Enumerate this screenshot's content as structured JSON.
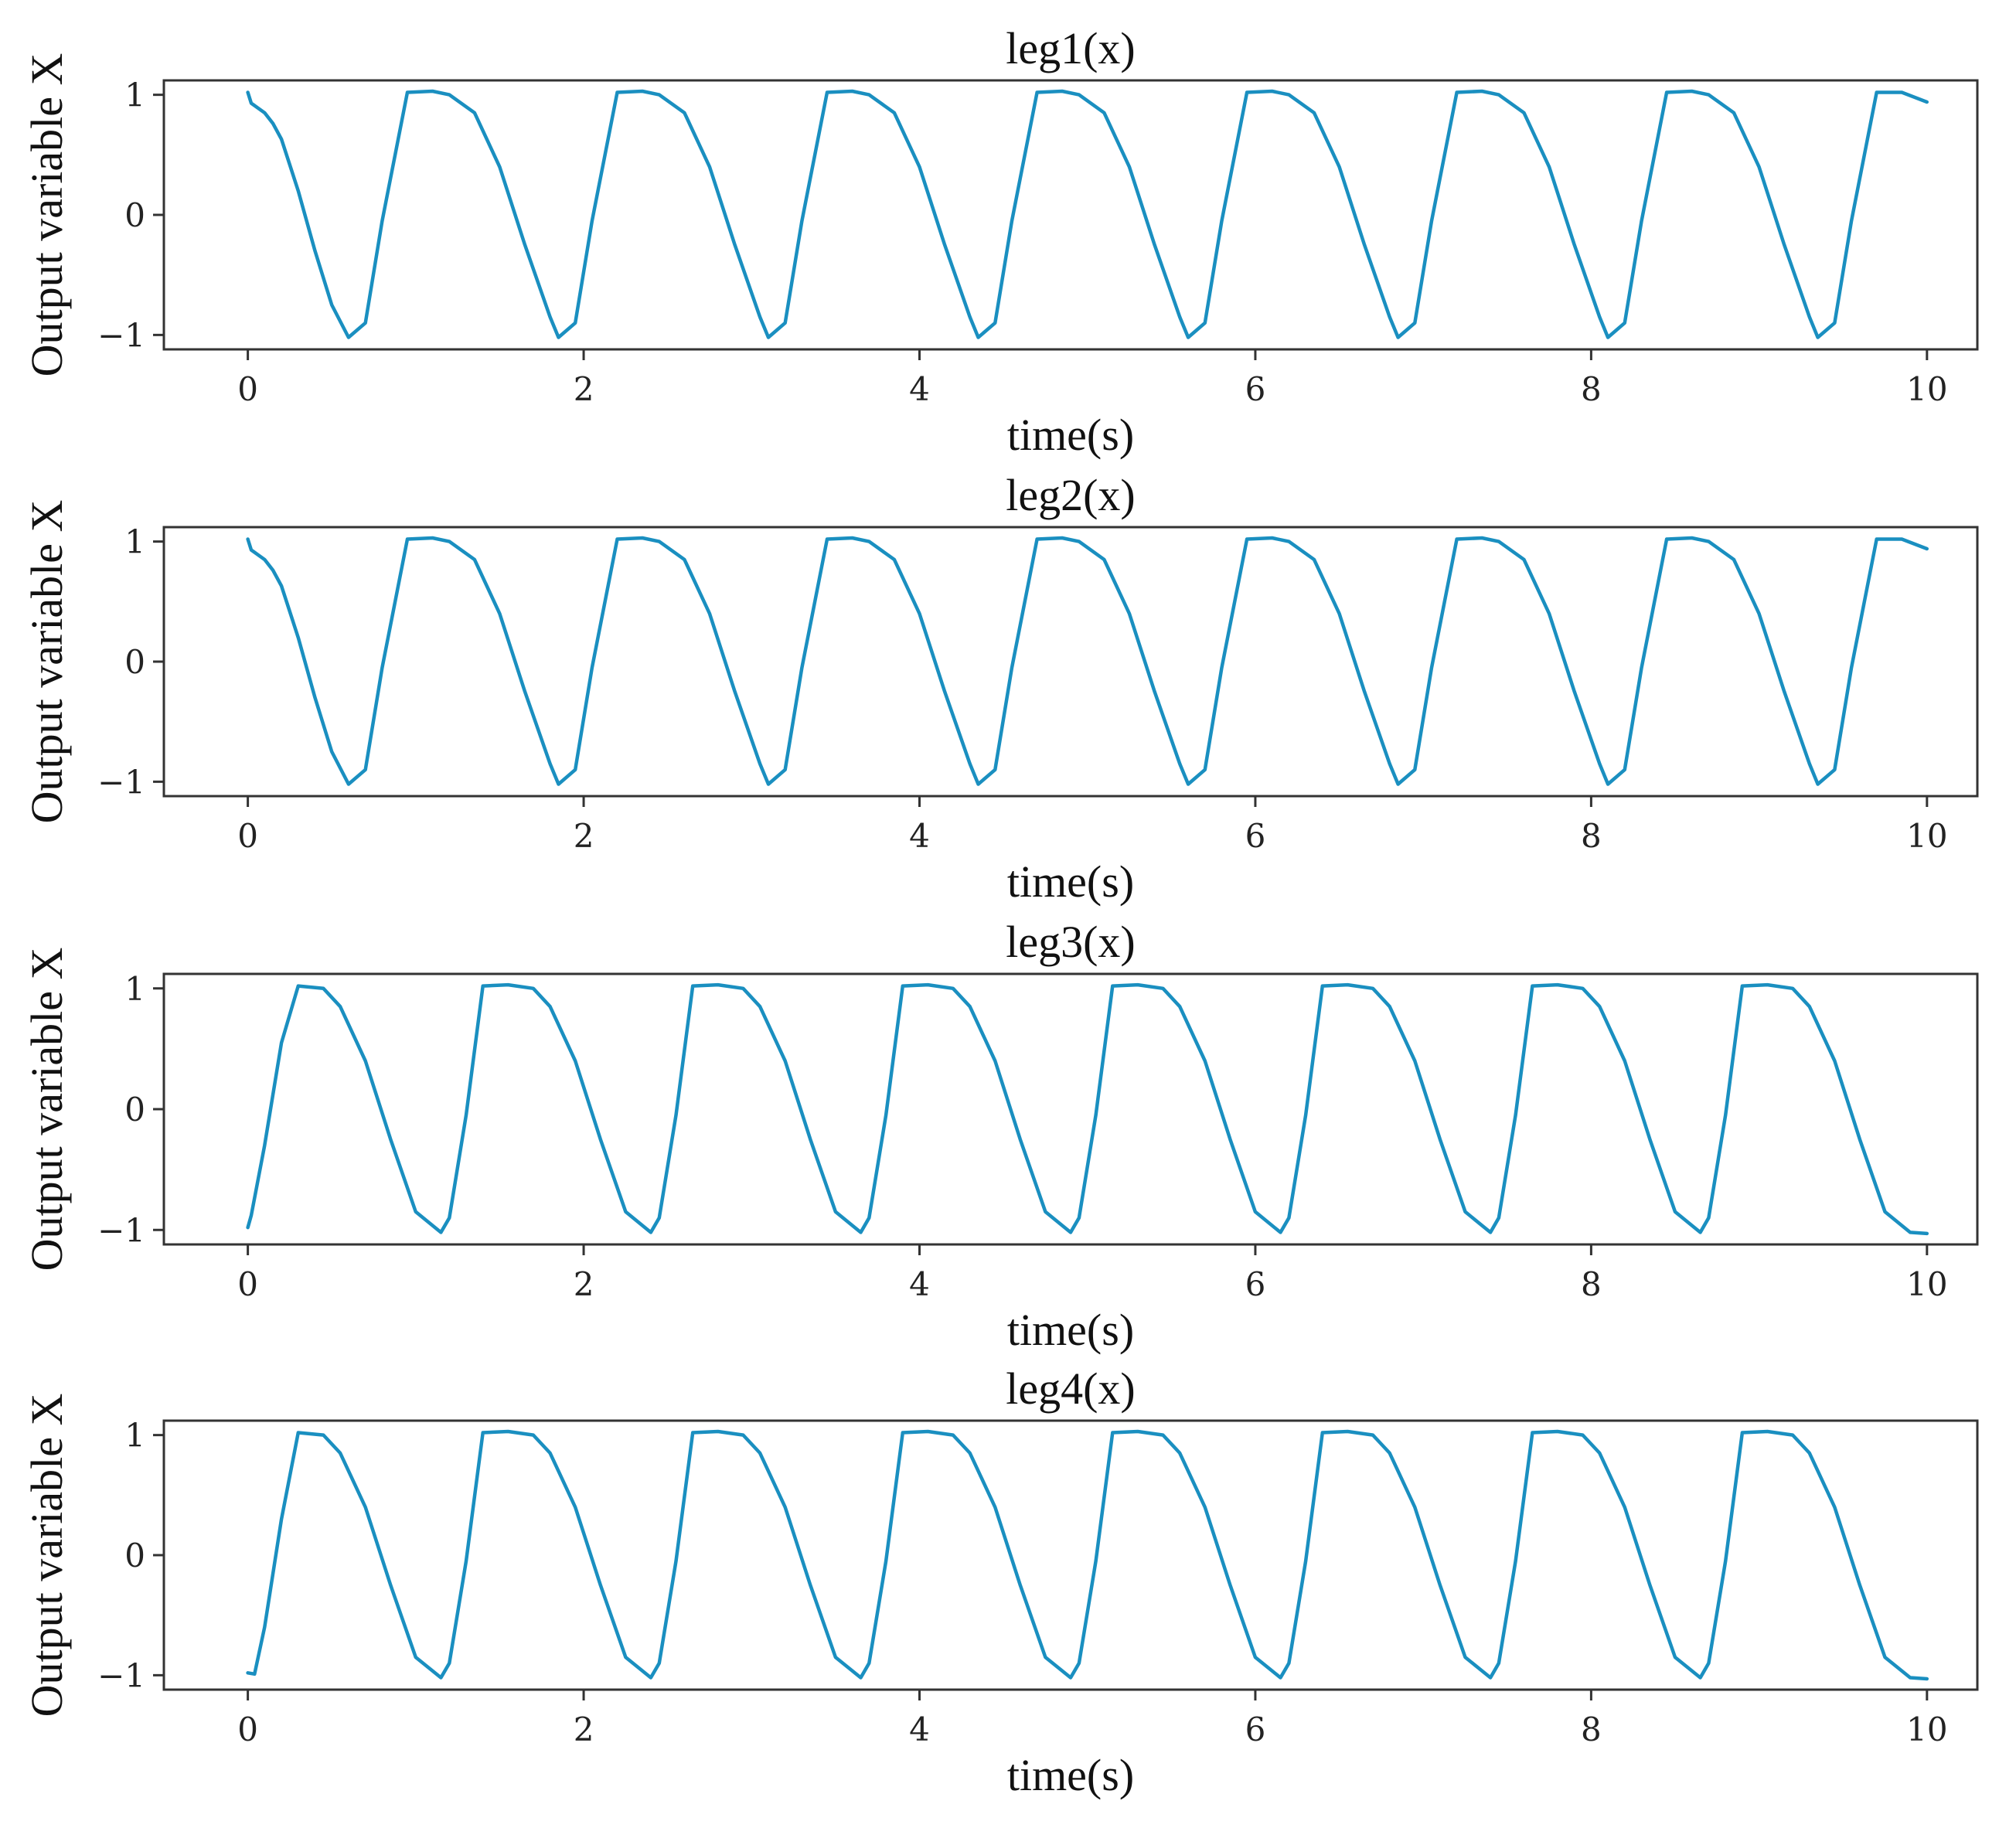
{
  "style": {
    "line_color": "#1a8fc0",
    "axes_color": "#333333",
    "background": "#ffffff"
  },
  "chart_data": [
    {
      "type": "line",
      "title": "leg1(x)",
      "xlabel": "time(s)",
      "ylabel": "Output variable X",
      "xlim": [
        -0.5,
        10.3
      ],
      "ylim": [
        -1.12,
        1.12
      ],
      "xticks": [
        0,
        2,
        4,
        6,
        8,
        10
      ],
      "xtick_labels": [
        "0",
        "2",
        "4",
        "6",
        "8",
        "10"
      ],
      "yticks": [
        1,
        0,
        -1
      ],
      "ytick_labels": [
        "1",
        "0",
        "−1"
      ],
      "grid": false,
      "series": [
        {
          "color": "#1a8fc0",
          "x": [
            0,
            0.02,
            0.05,
            0.1,
            0.15,
            0.2,
            0.3,
            0.4,
            0.5,
            0.6,
            0.7,
            0.8,
            0.95,
            1.1,
            1.2,
            1.35,
            1.5,
            1.65,
            1.8,
            1.85,
            1.95,
            2.05,
            2.2,
            2.35,
            2.45,
            2.6,
            2.75,
            2.9,
            3.05,
            3.1,
            3.2,
            3.3,
            3.45,
            3.6,
            3.7,
            3.85,
            4.0,
            4.15,
            4.3,
            4.35,
            4.45,
            4.55,
            4.7,
            4.85,
            4.95,
            5.1,
            5.25,
            5.4,
            5.55,
            5.6,
            5.7,
            5.8,
            5.95,
            6.1,
            6.2,
            6.35,
            6.5,
            6.65,
            6.8,
            6.85,
            6.95,
            7.05,
            7.2,
            7.35,
            7.45,
            7.6,
            7.75,
            7.9,
            8.05,
            8.1,
            8.2,
            8.3,
            8.45,
            8.6,
            8.7,
            8.85,
            9.0,
            9.15,
            9.3,
            9.35,
            9.45,
            9.55,
            9.7,
            9.85,
            10.0
          ],
          "y": [
            1.02,
            0.93,
            0.9,
            0.85,
            0.76,
            0.63,
            0.2,
            -0.3,
            -0.75,
            -1.02,
            -0.9,
            -0.05,
            1.02,
            1.03,
            1.0,
            0.85,
            0.4,
            -0.25,
            -0.85,
            -1.02,
            -0.9,
            -0.05,
            1.02,
            1.03,
            1.0,
            0.85,
            0.4,
            -0.25,
            -0.85,
            -1.02,
            -0.9,
            -0.05,
            1.02,
            1.03,
            1.0,
            0.85,
            0.4,
            -0.25,
            -0.85,
            -1.02,
            -0.9,
            -0.05,
            1.02,
            1.03,
            1.0,
            0.85,
            0.4,
            -0.25,
            -0.85,
            -1.02,
            -0.9,
            -0.05,
            1.02,
            1.03,
            1.0,
            0.85,
            0.4,
            -0.25,
            -0.85,
            -1.02,
            -0.9,
            -0.05,
            1.02,
            1.03,
            1.0,
            0.85,
            0.4,
            -0.25,
            -0.85,
            -1.02,
            -0.9,
            -0.05,
            1.02,
            1.03,
            1.0,
            0.85,
            0.4,
            -0.25,
            -0.85,
            -1.02,
            -0.9,
            -0.05,
            1.02,
            1.02,
            0.94
          ]
        }
      ]
    },
    {
      "type": "line",
      "title": "leg2(x)",
      "xlabel": "time(s)",
      "ylabel": "Output variable X",
      "xlim": [
        -0.5,
        10.3
      ],
      "ylim": [
        -1.12,
        1.12
      ],
      "xticks": [
        0,
        2,
        4,
        6,
        8,
        10
      ],
      "xtick_labels": [
        "0",
        "2",
        "4",
        "6",
        "8",
        "10"
      ],
      "yticks": [
        1,
        0,
        -1
      ],
      "ytick_labels": [
        "1",
        "0",
        "−1"
      ],
      "grid": false,
      "series": [
        {
          "color": "#1a8fc0",
          "x": [
            0,
            0.02,
            0.05,
            0.1,
            0.15,
            0.2,
            0.3,
            0.4,
            0.5,
            0.6,
            0.7,
            0.8,
            0.95,
            1.1,
            1.2,
            1.35,
            1.5,
            1.65,
            1.8,
            1.85,
            1.95,
            2.05,
            2.2,
            2.35,
            2.45,
            2.6,
            2.75,
            2.9,
            3.05,
            3.1,
            3.2,
            3.3,
            3.45,
            3.6,
            3.7,
            3.85,
            4.0,
            4.15,
            4.3,
            4.35,
            4.45,
            4.55,
            4.7,
            4.85,
            4.95,
            5.1,
            5.25,
            5.4,
            5.55,
            5.6,
            5.7,
            5.8,
            5.95,
            6.1,
            6.2,
            6.35,
            6.5,
            6.65,
            6.8,
            6.85,
            6.95,
            7.05,
            7.2,
            7.35,
            7.45,
            7.6,
            7.75,
            7.9,
            8.05,
            8.1,
            8.2,
            8.3,
            8.45,
            8.6,
            8.7,
            8.85,
            9.0,
            9.15,
            9.3,
            9.35,
            9.45,
            9.55,
            9.7,
            9.85,
            10.0
          ],
          "y": [
            1.02,
            0.93,
            0.9,
            0.85,
            0.76,
            0.63,
            0.2,
            -0.3,
            -0.75,
            -1.02,
            -0.9,
            -0.05,
            1.02,
            1.03,
            1.0,
            0.85,
            0.4,
            -0.25,
            -0.85,
            -1.02,
            -0.9,
            -0.05,
            1.02,
            1.03,
            1.0,
            0.85,
            0.4,
            -0.25,
            -0.85,
            -1.02,
            -0.9,
            -0.05,
            1.02,
            1.03,
            1.0,
            0.85,
            0.4,
            -0.25,
            -0.85,
            -1.02,
            -0.9,
            -0.05,
            1.02,
            1.03,
            1.0,
            0.85,
            0.4,
            -0.25,
            -0.85,
            -1.02,
            -0.9,
            -0.05,
            1.02,
            1.03,
            1.0,
            0.85,
            0.4,
            -0.25,
            -0.85,
            -1.02,
            -0.9,
            -0.05,
            1.02,
            1.03,
            1.0,
            0.85,
            0.4,
            -0.25,
            -0.85,
            -1.02,
            -0.9,
            -0.05,
            1.02,
            1.03,
            1.0,
            0.85,
            0.4,
            -0.25,
            -0.85,
            -1.02,
            -0.9,
            -0.05,
            1.02,
            1.02,
            0.94
          ]
        }
      ]
    },
    {
      "type": "line",
      "title": "leg3(x)",
      "xlabel": "time(s)",
      "ylabel": "Output variable X",
      "xlim": [
        -0.5,
        10.3
      ],
      "ylim": [
        -1.12,
        1.12
      ],
      "xticks": [
        0,
        2,
        4,
        6,
        8,
        10
      ],
      "xtick_labels": [
        "0",
        "2",
        "4",
        "6",
        "8",
        "10"
      ],
      "yticks": [
        1,
        0,
        -1
      ],
      "ytick_labels": [
        "1",
        "0",
        "−1"
      ],
      "grid": false,
      "series": [
        {
          "color": "#1a8fc0",
          "x": [
            0,
            0.02,
            0.1,
            0.2,
            0.3,
            0.45,
            0.55,
            0.7,
            0.85,
            1.0,
            1.15,
            1.2,
            1.3,
            1.4,
            1.55,
            1.7,
            1.8,
            1.95,
            2.1,
            2.25,
            2.4,
            2.45,
            2.55,
            2.65,
            2.8,
            2.95,
            3.05,
            3.2,
            3.35,
            3.5,
            3.65,
            3.7,
            3.8,
            3.9,
            4.05,
            4.2,
            4.3,
            4.45,
            4.6,
            4.75,
            4.9,
            4.95,
            5.05,
            5.15,
            5.3,
            5.45,
            5.55,
            5.7,
            5.85,
            6.0,
            6.15,
            6.2,
            6.3,
            6.4,
            6.55,
            6.7,
            6.8,
            6.95,
            7.1,
            7.25,
            7.4,
            7.45,
            7.55,
            7.65,
            7.8,
            7.95,
            8.05,
            8.2,
            8.35,
            8.5,
            8.65,
            8.7,
            8.8,
            8.9,
            9.05,
            9.2,
            9.3,
            9.45,
            9.6,
            9.75,
            9.9,
            10.0
          ],
          "y": [
            -0.98,
            -0.88,
            -0.3,
            0.55,
            1.02,
            1.0,
            0.85,
            0.4,
            -0.25,
            -0.85,
            -1.02,
            -0.9,
            -0.05,
            1.02,
            1.03,
            1.0,
            0.85,
            0.4,
            -0.25,
            -0.85,
            -1.02,
            -0.9,
            -0.05,
            1.02,
            1.03,
            1.0,
            0.85,
            0.4,
            -0.25,
            -0.85,
            -1.02,
            -0.9,
            -0.05,
            1.02,
            1.03,
            1.0,
            0.85,
            0.4,
            -0.25,
            -0.85,
            -1.02,
            -0.9,
            -0.05,
            1.02,
            1.03,
            1.0,
            0.85,
            0.4,
            -0.25,
            -0.85,
            -1.02,
            -0.9,
            -0.05,
            1.02,
            1.03,
            1.0,
            0.85,
            0.4,
            -0.25,
            -0.85,
            -1.02,
            -0.9,
            -0.05,
            1.02,
            1.03,
            1.0,
            0.85,
            0.4,
            -0.25,
            -0.85,
            -1.02,
            -0.9,
            -0.05,
            1.02,
            1.03,
            1.0,
            0.85,
            0.4,
            -0.25,
            -0.85,
            -1.02,
            -1.03
          ]
        }
      ]
    },
    {
      "type": "line",
      "title": "leg4(x)",
      "xlabel": "time(s)",
      "ylabel": "Output variable X",
      "xlim": [
        -0.5,
        10.3
      ],
      "ylim": [
        -1.12,
        1.12
      ],
      "xticks": [
        0,
        2,
        4,
        6,
        8,
        10
      ],
      "xtick_labels": [
        "0",
        "2",
        "4",
        "6",
        "8",
        "10"
      ],
      "yticks": [
        1,
        0,
        -1
      ],
      "ytick_labels": [
        "1",
        "0",
        "−1"
      ],
      "grid": false,
      "series": [
        {
          "color": "#1a8fc0",
          "x": [
            0,
            0.04,
            0.1,
            0.2,
            0.3,
            0.45,
            0.55,
            0.7,
            0.85,
            1.0,
            1.15,
            1.2,
            1.3,
            1.4,
            1.55,
            1.7,
            1.8,
            1.95,
            2.1,
            2.25,
            2.4,
            2.45,
            2.55,
            2.65,
            2.8,
            2.95,
            3.05,
            3.2,
            3.35,
            3.5,
            3.65,
            3.7,
            3.8,
            3.9,
            4.05,
            4.2,
            4.3,
            4.45,
            4.6,
            4.75,
            4.9,
            4.95,
            5.05,
            5.15,
            5.3,
            5.45,
            5.55,
            5.7,
            5.85,
            6.0,
            6.15,
            6.2,
            6.3,
            6.4,
            6.55,
            6.7,
            6.8,
            6.95,
            7.1,
            7.25,
            7.4,
            7.45,
            7.55,
            7.65,
            7.8,
            7.95,
            8.05,
            8.2,
            8.35,
            8.5,
            8.65,
            8.7,
            8.8,
            8.9,
            9.05,
            9.2,
            9.3,
            9.45,
            9.6,
            9.75,
            9.9,
            10.0
          ],
          "y": [
            -0.98,
            -0.99,
            -0.6,
            0.3,
            1.02,
            1.0,
            0.85,
            0.4,
            -0.25,
            -0.85,
            -1.02,
            -0.9,
            -0.05,
            1.02,
            1.03,
            1.0,
            0.85,
            0.4,
            -0.25,
            -0.85,
            -1.02,
            -0.9,
            -0.05,
            1.02,
            1.03,
            1.0,
            0.85,
            0.4,
            -0.25,
            -0.85,
            -1.02,
            -0.9,
            -0.05,
            1.02,
            1.03,
            1.0,
            0.85,
            0.4,
            -0.25,
            -0.85,
            -1.02,
            -0.9,
            -0.05,
            1.02,
            1.03,
            1.0,
            0.85,
            0.4,
            -0.25,
            -0.85,
            -1.02,
            -0.9,
            -0.05,
            1.02,
            1.03,
            1.0,
            0.85,
            0.4,
            -0.25,
            -0.85,
            -1.02,
            -0.9,
            -0.05,
            1.02,
            1.03,
            1.0,
            0.85,
            0.4,
            -0.25,
            -0.85,
            -1.02,
            -0.9,
            -0.05,
            1.02,
            1.03,
            1.0,
            0.85,
            0.4,
            -0.25,
            -0.85,
            -1.02,
            -1.03
          ]
        }
      ]
    }
  ]
}
